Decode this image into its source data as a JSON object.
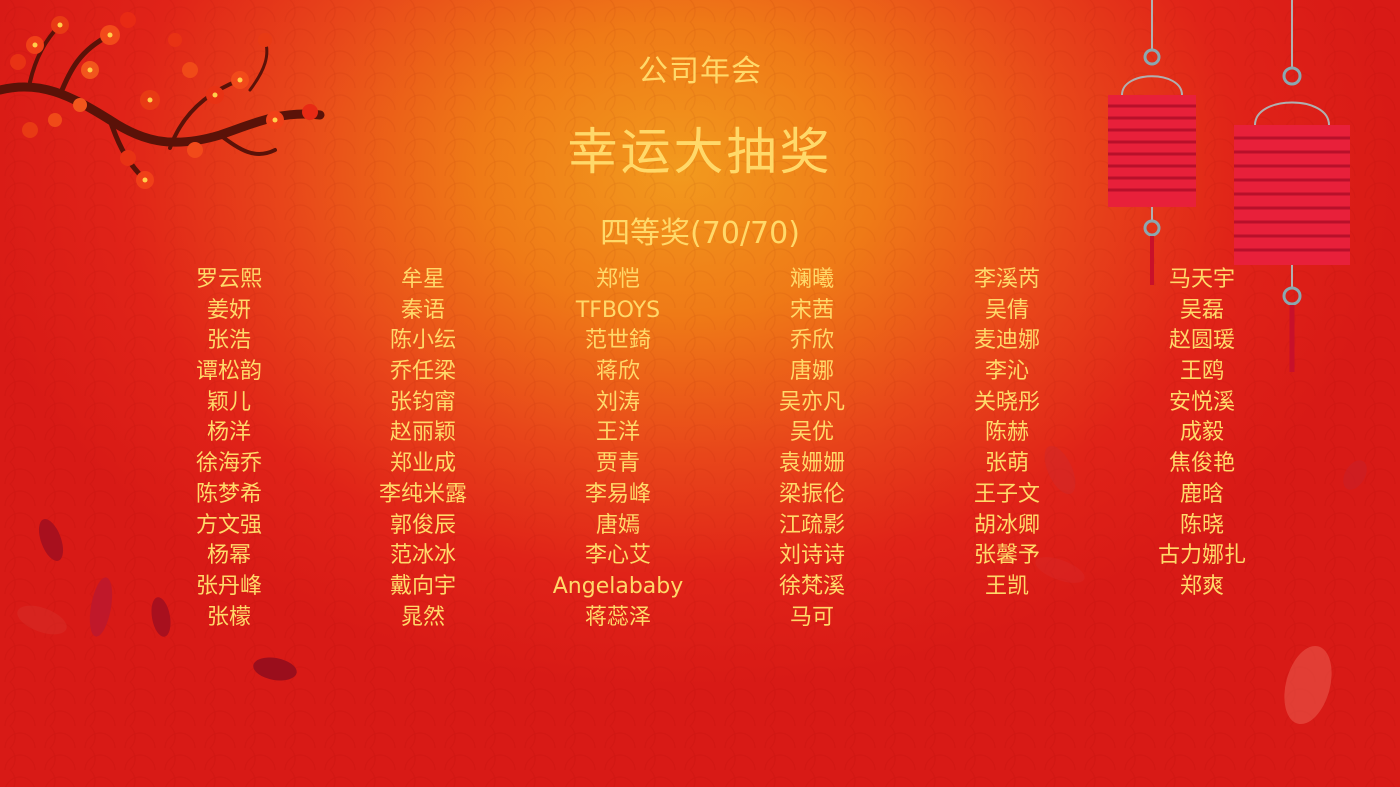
{
  "header": {
    "subtitle": "公司年会",
    "title": "幸运大抽奖",
    "prize_label": "四等奖(70/70)"
  },
  "winners": {
    "columns": [
      [
        "罗云熙",
        "姜妍",
        "张浩",
        "谭松韵",
        "颖儿",
        "杨洋",
        "徐海乔",
        "陈梦希",
        "方文强",
        "杨幂",
        "张丹峰",
        "张檬"
      ],
      [
        "牟星",
        "秦语",
        "陈小纭",
        "乔任梁",
        "张钧甯",
        "赵丽颖",
        "郑业成",
        "李纯米露",
        "郭俊辰",
        "范冰冰",
        "戴向宇",
        "晁然"
      ],
      [
        "郑恺",
        "TFBOYS",
        "范世錡",
        "蒋欣",
        "刘涛",
        "王洋",
        "贾青",
        "李易峰",
        "唐嫣",
        "李心艾",
        "Angelababy",
        "蒋蕊泽"
      ],
      [
        "斓曦",
        "宋茜",
        "乔欣",
        "唐娜",
        "吴亦凡",
        "吴优",
        "袁姗姗",
        "梁振伦",
        "江疏影",
        "刘诗诗",
        "徐梵溪",
        "马可"
      ],
      [
        "李溪芮",
        "吴倩",
        "麦迪娜",
        "李沁",
        "关晓彤",
        "陈赫",
        "张萌",
        "王子文",
        "胡冰卿",
        "张馨予",
        "王凯"
      ],
      [
        "马天宇",
        "吴磊",
        "赵圆瑗",
        "王鸥",
        "安悦溪",
        "成毅",
        "焦俊艳",
        "鹿晗",
        "陈晓",
        "古力娜扎",
        "郑爽"
      ]
    ]
  },
  "decor": {
    "branch": "plum-blossom-branch-icon",
    "lanterns": "red-lantern-icon",
    "petals": "falling-petal-icon",
    "colors": {
      "text": "#ffd96a",
      "background_center": "#f29a1e",
      "background_edge": "#d81a16",
      "lantern": "#e8203a",
      "blossom": "#e83a14",
      "branch": "#5a1208"
    }
  }
}
